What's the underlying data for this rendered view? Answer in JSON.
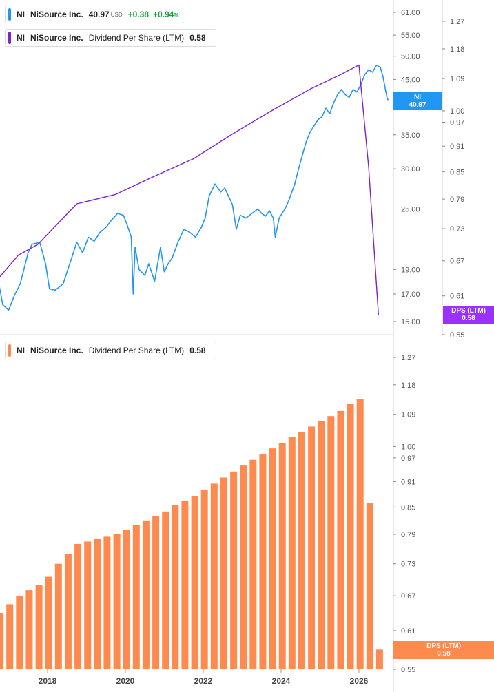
{
  "top_legend": {
    "price": {
      "symbol": "NI",
      "name": "NiSource Inc.",
      "value": "40.97",
      "currency": "USD",
      "change": "+0.38",
      "change_pct": "+0.94",
      "pct_sign": "%",
      "color": "#2196f3"
    },
    "dps": {
      "symbol": "NI",
      "name": "NiSource Inc.",
      "metric": "Dividend Per Share (LTM)",
      "value": "0.58",
      "color": "#7e22ce"
    }
  },
  "bottom_legend": {
    "symbol": "NI",
    "name": "NiSource Inc.",
    "metric": "Dividend Per Share (LTM)",
    "value": "0.58",
    "color": "#ff8a50"
  },
  "badges": {
    "price": {
      "symbol": "NI",
      "value": "40.97",
      "color": "#2196f3"
    },
    "dps_top": {
      "label": "DPS (LTM)",
      "value": "0.58",
      "color": "#9b30ff"
    },
    "dps_bottom": {
      "label": "DPS (LTM)",
      "value": "0.58",
      "color": "#ff8a50"
    }
  },
  "chart_data": [
    {
      "type": "line",
      "scale": "log",
      "x_ticks": [
        "2018",
        "2020",
        "2022",
        "2024",
        "2026"
      ],
      "price_axis_ticks": [
        "61.00",
        "55.00",
        "50.00",
        "45.00",
        "35.00",
        "30.00",
        "25.00",
        "19.00",
        "17.00",
        "15.00"
      ],
      "dps_axis_ticks": [
        "1.27",
        "1.18",
        "1.09",
        "1.00",
        "0.97",
        "0.91",
        "0.85",
        "0.79",
        "0.73",
        "0.67",
        "0.61",
        "0.55"
      ],
      "series": [
        {
          "name": "NI",
          "axis": "price",
          "color": "#2196f3",
          "points": [
            [
              2016.75,
              17.8
            ],
            [
              2016.85,
              16.2
            ],
            [
              2017.0,
              15.8
            ],
            [
              2017.15,
              16.9
            ],
            [
              2017.3,
              17.8
            ],
            [
              2017.5,
              20.5
            ],
            [
              2017.6,
              21.3
            ],
            [
              2017.8,
              21.5
            ],
            [
              2017.95,
              19.5
            ],
            [
              2018.05,
              17.4
            ],
            [
              2018.2,
              17.3
            ],
            [
              2018.4,
              17.8
            ],
            [
              2018.6,
              19.8
            ],
            [
              2018.75,
              21.5
            ],
            [
              2018.9,
              20.5
            ],
            [
              2019.05,
              22.0
            ],
            [
              2019.2,
              21.6
            ],
            [
              2019.35,
              22.5
            ],
            [
              2019.5,
              23.0
            ],
            [
              2019.65,
              23.8
            ],
            [
              2019.8,
              24.5
            ],
            [
              2019.95,
              24.3
            ],
            [
              2020.05,
              23.2
            ],
            [
              2020.15,
              22.0
            ],
            [
              2020.2,
              17.0
            ],
            [
              2020.25,
              21.0
            ],
            [
              2020.35,
              19.0
            ],
            [
              2020.5,
              18.5
            ],
            [
              2020.6,
              19.5
            ],
            [
              2020.75,
              18.0
            ],
            [
              2020.9,
              21.0
            ],
            [
              2021.0,
              18.8
            ],
            [
              2021.1,
              19.5
            ],
            [
              2021.2,
              20.0
            ],
            [
              2021.35,
              21.5
            ],
            [
              2021.5,
              22.8
            ],
            [
              2021.65,
              22.5
            ],
            [
              2021.8,
              22.0
            ],
            [
              2021.95,
              23.0
            ],
            [
              2022.05,
              24.0
            ],
            [
              2022.15,
              26.5
            ],
            [
              2022.3,
              28.0
            ],
            [
              2022.45,
              27.0
            ],
            [
              2022.55,
              27.5
            ],
            [
              2022.65,
              26.5
            ],
            [
              2022.75,
              25.5
            ],
            [
              2022.85,
              22.8
            ],
            [
              2022.95,
              24.3
            ],
            [
              2023.1,
              24.0
            ],
            [
              2023.25,
              24.5
            ],
            [
              2023.4,
              25.0
            ],
            [
              2023.5,
              24.5
            ],
            [
              2023.6,
              24.2
            ],
            [
              2023.7,
              24.8
            ],
            [
              2023.8,
              24.0
            ],
            [
              2023.85,
              22.0
            ],
            [
              2023.95,
              24.0
            ],
            [
              2024.1,
              25.0
            ],
            [
              2024.2,
              26.0
            ],
            [
              2024.35,
              28.0
            ],
            [
              2024.45,
              30.0
            ],
            [
              2024.55,
              32.0
            ],
            [
              2024.65,
              34.0
            ],
            [
              2024.75,
              35.5
            ],
            [
              2024.85,
              36.5
            ],
            [
              2024.95,
              37.5
            ],
            [
              2025.05,
              38.0
            ],
            [
              2025.15,
              39.5
            ],
            [
              2025.25,
              38.5
            ],
            [
              2025.35,
              40.5
            ],
            [
              2025.45,
              42.0
            ],
            [
              2025.55,
              43.0
            ],
            [
              2025.65,
              42.0
            ],
            [
              2025.75,
              41.5
            ],
            [
              2025.85,
              43.0
            ],
            [
              2025.95,
              42.5
            ],
            [
              2026.05,
              44.0
            ],
            [
              2026.15,
              46.0
            ],
            [
              2026.25,
              47.0
            ],
            [
              2026.35,
              46.5
            ],
            [
              2026.45,
              48.0
            ],
            [
              2026.55,
              47.5
            ],
            [
              2026.62,
              45.5
            ],
            [
              2026.68,
              43.0
            ],
            [
              2026.72,
              41.5
            ],
            [
              2026.75,
              40.97
            ]
          ]
        },
        {
          "name": "Dividend Per Share (LTM)",
          "axis": "dps",
          "color": "#7e22ce",
          "points": [
            [
              2016.75,
              0.64
            ],
            [
              2017.25,
              0.68
            ],
            [
              2017.75,
              0.7
            ],
            [
              2018.75,
              0.78
            ],
            [
              2019.75,
              0.8
            ],
            [
              2020.75,
              0.84
            ],
            [
              2021.75,
              0.88
            ],
            [
              2022.75,
              0.94
            ],
            [
              2023.75,
              1.0
            ],
            [
              2024.75,
              1.06
            ],
            [
              2025.5,
              1.1
            ],
            [
              2026.0,
              1.13
            ],
            [
              2026.25,
              0.86
            ],
            [
              2026.5,
              0.58
            ]
          ]
        }
      ]
    },
    {
      "type": "bar",
      "scale": "log",
      "x_ticks": [
        "2018",
        "2020",
        "2022",
        "2024",
        "2026"
      ],
      "y_ticks": [
        "1.27",
        "1.18",
        "1.09",
        "1.00",
        "0.97",
        "0.91",
        "0.85",
        "0.79",
        "0.73",
        "0.67",
        "0.61",
        "0.55"
      ],
      "series": [
        {
          "name": "Dividend Per Share (LTM)",
          "color": "#ff8a50",
          "x": [
            2016.78,
            2017.03,
            2017.28,
            2017.53,
            2017.78,
            2018.03,
            2018.28,
            2018.53,
            2018.78,
            2019.03,
            2019.28,
            2019.53,
            2019.78,
            2020.03,
            2020.28,
            2020.53,
            2020.78,
            2021.03,
            2021.28,
            2021.53,
            2021.78,
            2022.03,
            2022.28,
            2022.53,
            2022.78,
            2023.03,
            2023.28,
            2023.53,
            2023.78,
            2024.03,
            2024.28,
            2024.53,
            2024.78,
            2025.03,
            2025.28,
            2025.53,
            2025.78,
            2026.03,
            2026.28,
            2026.53
          ],
          "values": [
            0.64,
            0.655,
            0.67,
            0.68,
            0.69,
            0.705,
            0.73,
            0.75,
            0.77,
            0.775,
            0.78,
            0.785,
            0.79,
            0.8,
            0.81,
            0.82,
            0.83,
            0.84,
            0.855,
            0.865,
            0.875,
            0.89,
            0.905,
            0.92,
            0.935,
            0.95,
            0.965,
            0.98,
            0.995,
            1.01,
            1.025,
            1.04,
            1.055,
            1.07,
            1.085,
            1.1,
            1.12,
            1.135,
            0.86,
            0.58
          ]
        }
      ]
    }
  ]
}
